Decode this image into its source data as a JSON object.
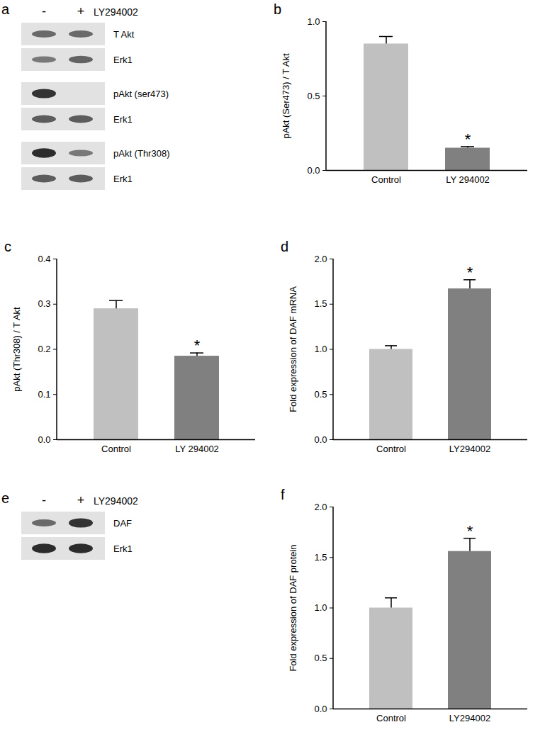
{
  "chart_data": [
    {
      "panel": "b",
      "type": "bar",
      "categories": [
        "Control",
        "LY 294002"
      ],
      "values": [
        0.85,
        0.15
      ],
      "errors": [
        0.05,
        0.01
      ],
      "colors": [
        "#c0c0c0",
        "#808080"
      ],
      "y_label": "pAkt (Ser473) / T Akt",
      "ylim": [
        0,
        1
      ],
      "yticks": [
        {
          "value": 0,
          "label": "0.0"
        },
        0.5,
        {
          "value": 1,
          "label": "1.0"
        }
      ],
      "grid": false,
      "annotations": [
        {
          "category": "LY 294002",
          "text": "*"
        }
      ]
    },
    {
      "panel": "c",
      "type": "bar",
      "categories": [
        "Control",
        "LY 294002"
      ],
      "values": [
        0.29,
        0.185
      ],
      "errors": [
        0.018,
        0.007
      ],
      "colors": [
        "#c0c0c0",
        "#808080"
      ],
      "y_label": "pAkt (Thr308) / T Akt",
      "ylim": [
        0,
        0.4
      ],
      "yticks": [
        {
          "value": 0,
          "label": "0.0"
        },
        0.1,
        0.2,
        0.3,
        0.4
      ],
      "grid": false,
      "annotations": [
        {
          "category": "LY 294002",
          "text": "*"
        }
      ]
    },
    {
      "panel": "d",
      "type": "bar",
      "categories": [
        "Control",
        "LY294002"
      ],
      "values": [
        1.0,
        1.67
      ],
      "errors": [
        0.04,
        0.1
      ],
      "colors": [
        "#c0c0c0",
        "#808080"
      ],
      "y_label": "Fold expression of DAF mRNA",
      "ylim": [
        0,
        2
      ],
      "yticks": [
        {
          "value": 0,
          "label": "0.0"
        },
        0.5,
        {
          "value": 1,
          "label": "1.0"
        },
        1.5,
        {
          "value": 2,
          "label": "2.0"
        }
      ],
      "grid": false,
      "annotations": [
        {
          "category": "LY294002",
          "text": "*"
        }
      ]
    },
    {
      "panel": "f",
      "type": "bar",
      "categories": [
        "Control",
        "LY294002"
      ],
      "values": [
        1.0,
        1.56
      ],
      "errors": [
        0.1,
        0.13
      ],
      "colors": [
        "#c0c0c0",
        "#808080"
      ],
      "y_label": "Fold expression of DAF protein",
      "ylim": [
        0,
        2
      ],
      "yticks": [
        {
          "value": 0,
          "label": "0.0"
        },
        0.5,
        {
          "value": 1,
          "label": "1.0"
        },
        1.5,
        {
          "value": 2,
          "label": "2.0"
        }
      ],
      "grid": false,
      "annotations": [
        {
          "category": "LY294002",
          "text": "*"
        }
      ]
    }
  ],
  "blots": [
    {
      "panel": "a",
      "treatment": "LY294002",
      "lanes": [
        "-",
        "+"
      ],
      "groups": [
        [
          {
            "label": "T Akt",
            "bands": [
              0.5,
              0.5
            ]
          },
          {
            "label": "Erk1",
            "bands": [
              0.4,
              0.55
            ]
          }
        ],
        [
          {
            "label": "pAkt (ser473)",
            "bands": [
              0.9,
              0
            ]
          },
          {
            "label": "Erk1",
            "bands": [
              0.6,
              0.6
            ]
          }
        ],
        [
          {
            "label": "pAkt (Thr308)",
            "bands": [
              0.95,
              0.4
            ]
          },
          {
            "label": "Erk1",
            "bands": [
              0.6,
              0.6
            ]
          }
        ]
      ]
    },
    {
      "panel": "e",
      "treatment": "LY294002",
      "lanes": [
        "-",
        "+"
      ],
      "groups": [
        [
          {
            "label": "DAF",
            "bands": [
              0.5,
              0.9
            ]
          },
          {
            "label": "Erk1",
            "bands": [
              0.95,
              0.95
            ]
          }
        ]
      ]
    }
  ]
}
